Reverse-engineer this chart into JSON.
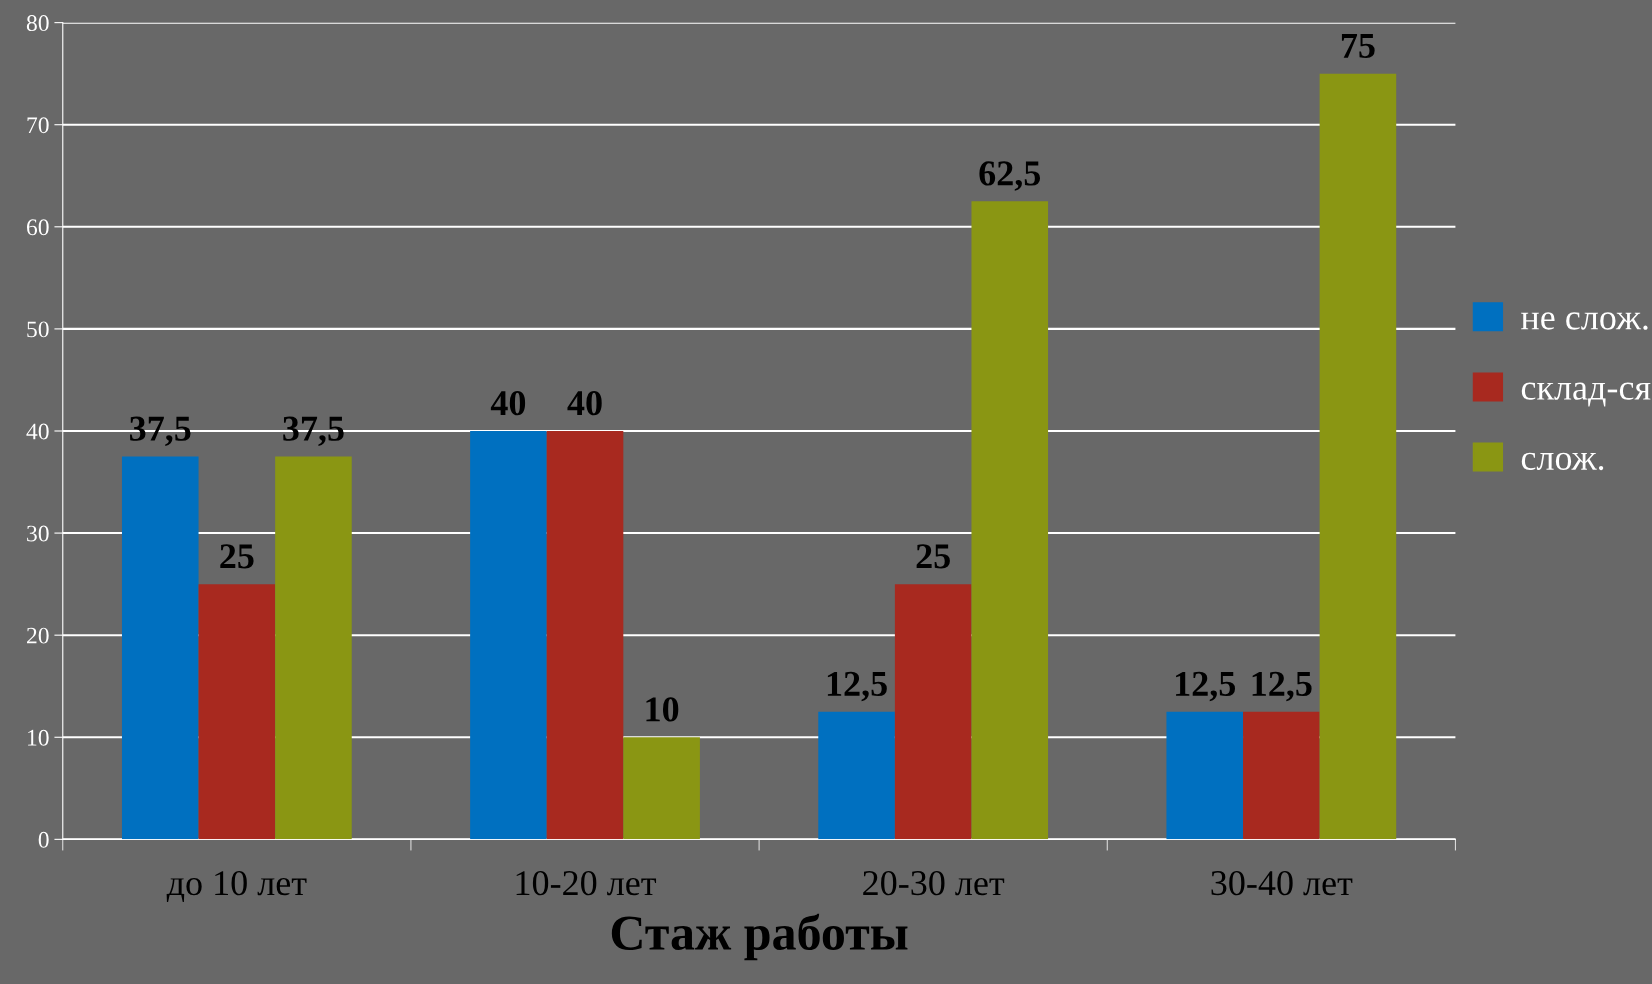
{
  "chart_data": {
    "type": "bar",
    "xlabel": "Стаж работы",
    "categories": [
      "до 10 лет",
      "10-20 лет",
      "20-30 лет",
      "30-40 лет"
    ],
    "series": [
      {
        "name": "не слож.",
        "color": "#0070c0",
        "values": [
          37.5,
          40,
          12.5,
          12.5
        ],
        "value_labels": [
          "37,5",
          "40",
          "12,5",
          "12,5"
        ]
      },
      {
        "name": "склад-ся",
        "color": "#a8291f",
        "values": [
          25,
          40,
          25,
          12.5
        ],
        "value_labels": [
          "25",
          "40",
          "25",
          "12,5"
        ]
      },
      {
        "name": "слож.",
        "color": "#8a9613",
        "values": [
          37.5,
          10,
          62.5,
          75
        ],
        "value_labels": [
          "37,5",
          "10",
          "62,5",
          "75"
        ]
      }
    ],
    "ylim": [
      0,
      80
    ],
    "yticks": [
      0,
      10,
      20,
      30,
      40,
      50,
      60,
      70,
      80
    ],
    "grid": "y",
    "legend": "right"
  }
}
